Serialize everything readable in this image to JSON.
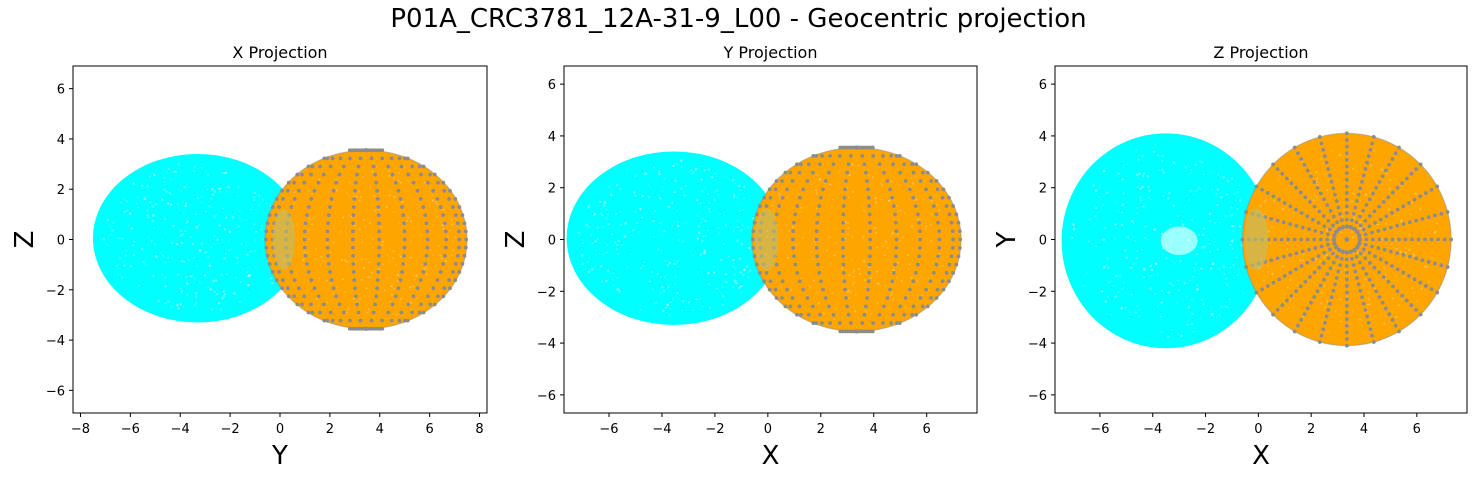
{
  "figure": {
    "title": "P01A_CRC3781_12A-31-9_L00 - Geocentric projection"
  },
  "colors": {
    "cyan_cloud": "#00ffff",
    "orange_cloud": "#ffa500",
    "grid_points": "#8c8c8c",
    "frame": "#000000"
  },
  "chart_data": [
    {
      "type": "scatter",
      "title": "X Projection",
      "xlabel": "Y",
      "ylabel": "Z",
      "xlim": [
        -8.3,
        8.3
      ],
      "ylim": [
        -6.9,
        6.9
      ],
      "xticks": [
        -8,
        -6,
        -4,
        -2,
        0,
        2,
        4,
        6,
        8
      ],
      "yticks": [
        -6,
        -4,
        -2,
        0,
        2,
        4,
        6
      ],
      "grid": false,
      "series": [
        {
          "role": "cyan-cloud",
          "shape": "ellipse",
          "center": [
            -3.3,
            0.05
          ],
          "radius_x": 4.2,
          "radius_y": 3.35
        },
        {
          "role": "orange-sphere",
          "shape": "ellipse",
          "center": [
            3.45,
            0.0
          ],
          "radius_x": 4.05,
          "radius_y": 3.55,
          "grid": "meridians"
        }
      ]
    },
    {
      "type": "scatter",
      "title": "Y Projection",
      "xlabel": "X",
      "ylabel": "Z",
      "xlim": [
        -7.7,
        7.9
      ],
      "ylim": [
        -6.7,
        6.7
      ],
      "xticks": [
        -6,
        -4,
        -2,
        0,
        2,
        4,
        6
      ],
      "yticks": [
        -6,
        -4,
        -2,
        0,
        2,
        4,
        6
      ],
      "grid": false,
      "series": [
        {
          "role": "cyan-cloud",
          "shape": "ellipse",
          "center": [
            -3.55,
            0.05
          ],
          "radius_x": 4.05,
          "radius_y": 3.35
        },
        {
          "role": "orange-sphere",
          "shape": "ellipse",
          "center": [
            3.35,
            0.0
          ],
          "radius_x": 3.95,
          "radius_y": 3.55,
          "grid": "meridians"
        }
      ]
    },
    {
      "type": "scatter",
      "title": "Z Projection",
      "xlabel": "X",
      "ylabel": "Y",
      "xlim": [
        -7.7,
        7.9
      ],
      "ylim": [
        -6.7,
        6.7
      ],
      "xticks": [
        -6,
        -4,
        -2,
        0,
        2,
        4,
        6
      ],
      "yticks": [
        -6,
        -4,
        -2,
        0,
        2,
        4,
        6
      ],
      "grid": false,
      "series": [
        {
          "role": "cyan-cloud",
          "shape": "ellipse",
          "center": [
            -3.5,
            -0.05
          ],
          "radius_x": 3.95,
          "radius_y": 4.15
        },
        {
          "role": "orange-sphere",
          "shape": "ellipse",
          "center": [
            3.35,
            0.0
          ],
          "radius_x": 3.95,
          "radius_y": 4.1,
          "grid": "radial"
        }
      ]
    }
  ]
}
